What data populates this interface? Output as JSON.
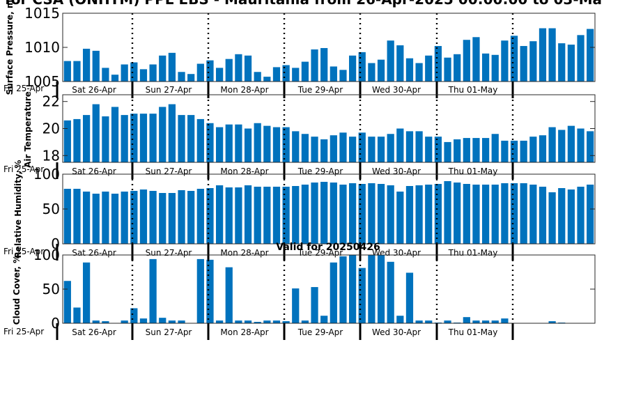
{
  "title": "for CSA (ONHTM) PPL EBS  - Mauritania from 26-Apr-2025 00:00:00 to 03-Ma",
  "valid_label": "Valid for 20250426",
  "colors": {
    "bar": "#0072bd",
    "axis": "#262626",
    "divider": "#000000"
  },
  "day_labels": [
    "Sat 26-Apr",
    "Sun 27-Apr",
    "Mon 28-Apr",
    "Tue 29-Apr",
    "Wed 30-Apr",
    "Thu 01-May"
  ],
  "start_label": "Fri 25-Apr",
  "chart_data": [
    {
      "type": "bar",
      "ylabel": "Surface Pressure, m",
      "ylim": [
        1005,
        1015
      ],
      "yticks": [
        "1005",
        "1010",
        "1015"
      ],
      "values": [
        1008.0,
        1008.0,
        1009.8,
        1009.5,
        1007.0,
        1006.0,
        1007.5,
        1007.8,
        1006.8,
        1007.5,
        1008.8,
        1009.2,
        1006.4,
        1006.1,
        1007.6,
        1008.1,
        1007.0,
        1008.3,
        1009.0,
        1008.8,
        1006.4,
        1005.7,
        1007.1,
        1007.4,
        1007.0,
        1007.9,
        1009.7,
        1009.9,
        1007.2,
        1006.7,
        1008.8,
        1009.3,
        1007.7,
        1008.2,
        1011.0,
        1010.3,
        1008.4,
        1007.7,
        1008.8,
        1010.2,
        1008.5,
        1009.0,
        1011.1,
        1011.5,
        1009.1,
        1008.9,
        1011.0,
        1011.7,
        1010.2,
        1010.9,
        1012.8,
        1012.8,
        1010.6,
        1010.4,
        1011.8,
        1012.7
      ]
    },
    {
      "type": "bar",
      "ylabel": "Air Temperature",
      "ylim": [
        17.5,
        22.5
      ],
      "yticks": [
        "22",
        "20",
        "18"
      ],
      "values": [
        20.6,
        20.7,
        21.0,
        21.8,
        20.9,
        21.6,
        21.0,
        21.1,
        21.1,
        21.1,
        21.6,
        21.8,
        21.0,
        21.0,
        20.7,
        20.4,
        20.1,
        20.3,
        20.3,
        20.0,
        20.4,
        20.2,
        20.1,
        20.1,
        19.8,
        19.6,
        19.4,
        19.2,
        19.5,
        19.7,
        19.4,
        19.7,
        19.4,
        19.4,
        19.6,
        20.0,
        19.8,
        19.8,
        19.4,
        19.4,
        19.0,
        19.2,
        19.3,
        19.3,
        19.3,
        19.6,
        19.1,
        19.1,
        19.1,
        19.4,
        19.5,
        20.1,
        19.9,
        20.2,
        20.0,
        19.8
      ]
    },
    {
      "type": "bar",
      "ylabel": "Relative Humidity, %",
      "ylim": [
        0,
        100
      ],
      "yticks": [
        "100",
        "50",
        "0"
      ],
      "values": [
        79,
        79,
        75,
        72,
        75,
        72,
        75,
        76,
        78,
        76,
        73,
        73,
        77,
        76,
        79,
        80,
        84,
        81,
        81,
        84,
        82,
        82,
        82,
        82,
        83,
        85,
        88,
        89,
        88,
        85,
        87,
        86,
        87,
        86,
        84,
        75,
        83,
        84,
        85,
        86,
        90,
        88,
        86,
        85,
        85,
        85,
        87,
        87,
        87,
        85,
        82,
        74,
        80,
        78,
        82,
        85
      ]
    },
    {
      "type": "bar",
      "ylabel": "Cloud Cover, %",
      "ylim": [
        0,
        100
      ],
      "yticks": [
        "100",
        "50",
        "0"
      ],
      "values": [
        62,
        23,
        89,
        4,
        3,
        0,
        4,
        22,
        7,
        94,
        8,
        4,
        4,
        0,
        94,
        93,
        4,
        82,
        4,
        4,
        2,
        4,
        4,
        3,
        51,
        4,
        53,
        11,
        89,
        98,
        100,
        81,
        100,
        100,
        90,
        11,
        74,
        4,
        4,
        1,
        4,
        1,
        9,
        4,
        4,
        4,
        7,
        0,
        0,
        0,
        0,
        3,
        1,
        0,
        0,
        0
      ]
    }
  ]
}
